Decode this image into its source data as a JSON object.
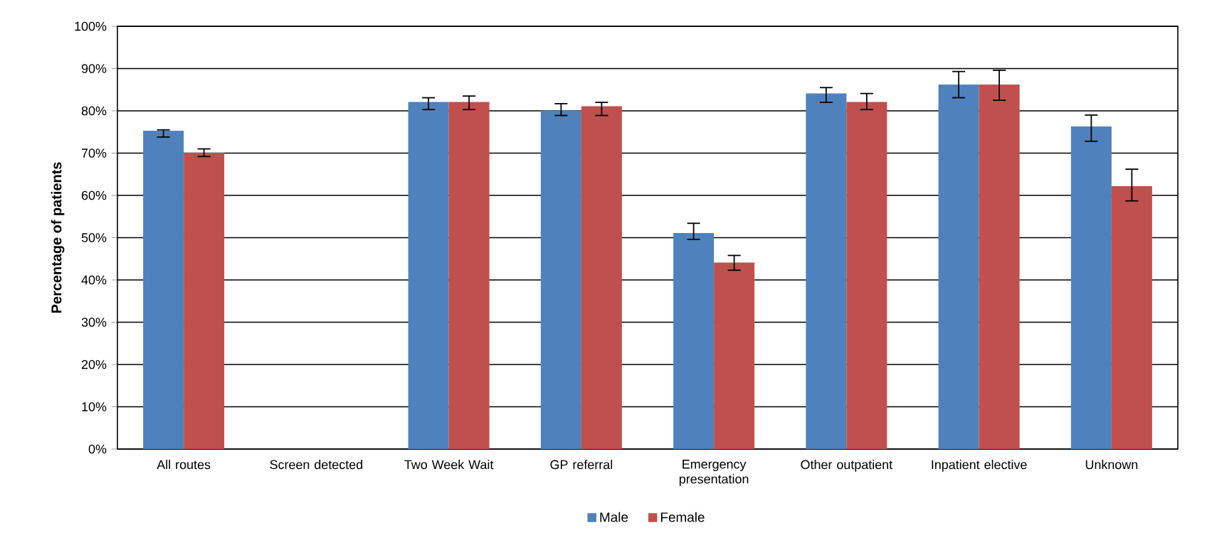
{
  "chart_data": {
    "type": "bar",
    "ylabel": "Percentage of patients",
    "categories": [
      "All routes",
      "Screen detected",
      "Two Week Wait",
      "GP referral",
      "Emergency presentation",
      "Other outpatient",
      "Inpatient elective",
      "Unknown"
    ],
    "series": [
      {
        "name": "Male",
        "color": "#4f81bd",
        "values": [
          75.3,
          null,
          82.1,
          80.1,
          51.1,
          84.1,
          86.2,
          76.3
        ],
        "errors": [
          [
            73.8,
            75.5
          ],
          null,
          [
            80.3,
            83.1
          ],
          [
            78.9,
            81.7
          ],
          [
            49.6,
            53.4
          ],
          [
            82.0,
            85.5
          ],
          [
            83.1,
            89.3
          ],
          [
            72.8,
            79.0
          ]
        ]
      },
      {
        "name": "Female",
        "color": "#c0504d",
        "values": [
          70.1,
          null,
          82.1,
          81.1,
          44.1,
          82.1,
          86.2,
          62.2
        ],
        "errors": [
          [
            69.2,
            71.0
          ],
          null,
          [
            80.3,
            83.5
          ],
          [
            78.9,
            82.0
          ],
          [
            42.3,
            45.8
          ],
          [
            80.3,
            84.1
          ],
          [
            82.5,
            89.6
          ],
          [
            58.7,
            66.2
          ]
        ]
      }
    ],
    "ylim": [
      0,
      100
    ],
    "yticks": [
      {
        "value": 0,
        "label": "0%"
      },
      {
        "value": 10,
        "label": "10%"
      },
      {
        "value": 20,
        "label": "20%"
      },
      {
        "value": 30,
        "label": "30%"
      },
      {
        "value": 40,
        "label": "40%"
      },
      {
        "value": 50,
        "label": "50%"
      },
      {
        "value": 60,
        "label": "60%"
      },
      {
        "value": 70,
        "label": "70%"
      },
      {
        "value": 80,
        "label": "80%"
      },
      {
        "value": 90,
        "label": "90%"
      },
      {
        "value": 100,
        "label": "100%"
      }
    ],
    "grid": "y",
    "legend": "bottom"
  }
}
